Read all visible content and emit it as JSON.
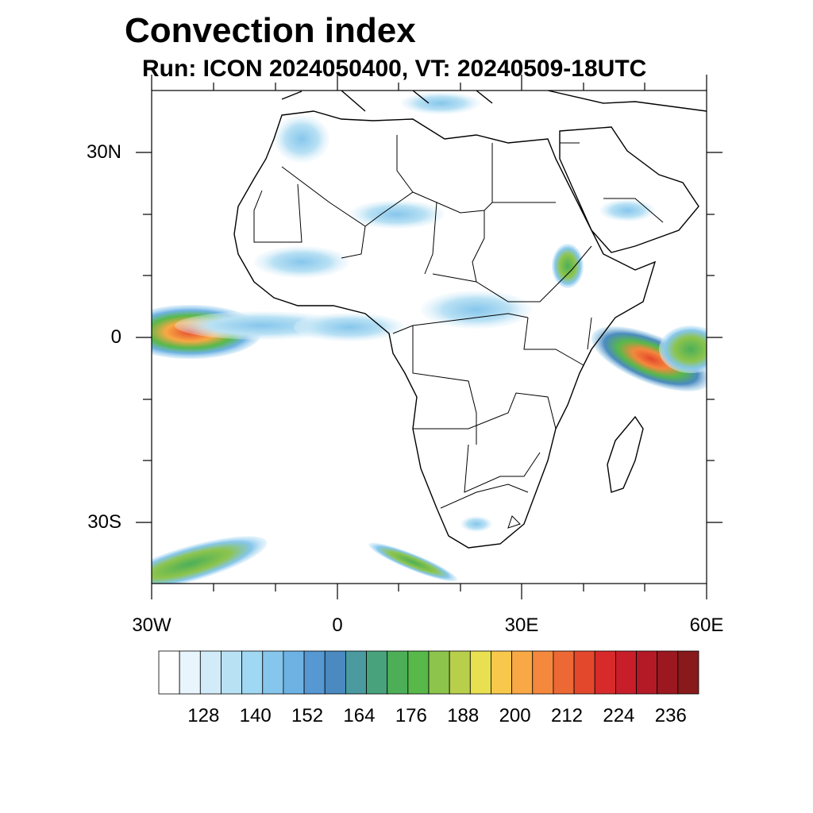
{
  "header": {
    "title": "Convection index",
    "subtitle": "Run: ICON 2024050400,  VT: 20240509-18UTC"
  },
  "map": {
    "region": "Africa",
    "lon_range": [
      -30,
      60
    ],
    "lat_range": [
      -40,
      40
    ],
    "lat_labels": [
      "30N",
      "0",
      "30S"
    ],
    "lon_labels": [
      "30W",
      "0",
      "30E",
      "60E"
    ]
  },
  "colorbar": {
    "colors": [
      "#ffffff",
      "#e9f5fc",
      "#d1ebf8",
      "#b9e1f4",
      "#a0d7f2",
      "#86c6ec",
      "#6eb2e4",
      "#5598d2",
      "#4a8ac0",
      "#4a9aa0",
      "#48a37c",
      "#4caf58",
      "#58b84a",
      "#8cc44c",
      "#b8cf4c",
      "#e8e050",
      "#f8c84c",
      "#f8a844",
      "#f4883c",
      "#ec6834",
      "#e4482c",
      "#d82a2a",
      "#c81e2a",
      "#b41a26",
      "#9c1820",
      "#881a1c"
    ],
    "labels": [
      "128",
      "140",
      "152",
      "164",
      "176",
      "188",
      "200",
      "212",
      "224",
      "236"
    ]
  }
}
